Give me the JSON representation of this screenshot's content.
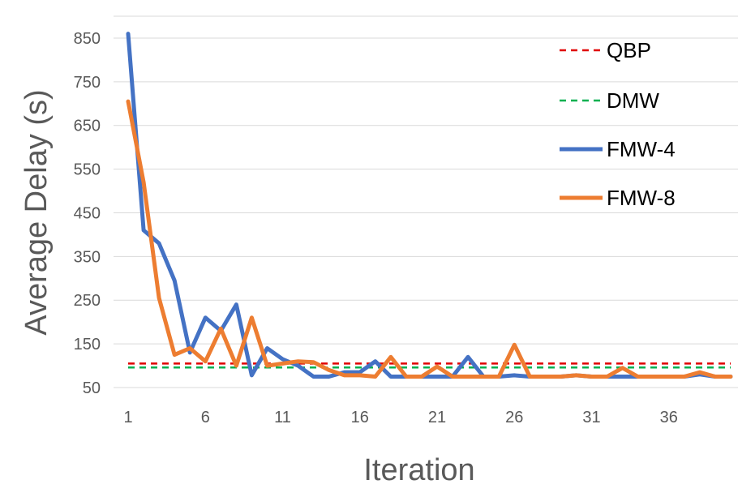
{
  "chart_data": {
    "type": "line",
    "title": "",
    "xlabel": "Iteration",
    "ylabel": "Average Delay (s)",
    "xlim": [
      1,
      40
    ],
    "ylim": [
      50,
      900
    ],
    "x_ticks": [
      1,
      6,
      11,
      16,
      21,
      26,
      31,
      36
    ],
    "x_tick_labels": [
      "1",
      "6",
      "11",
      "16",
      "21",
      "26",
      "31",
      "36"
    ],
    "y_ticks": [
      50,
      150,
      250,
      350,
      450,
      550,
      650,
      750,
      850
    ],
    "y_tick_labels": [
      "50",
      "150",
      "250",
      "350",
      "450",
      "550",
      "650",
      "750",
      "850"
    ],
    "grid": "horizontal",
    "legend_position": "top-right",
    "x": [
      1,
      2,
      3,
      4,
      5,
      6,
      7,
      8,
      9,
      10,
      11,
      12,
      13,
      14,
      15,
      16,
      17,
      18,
      19,
      20,
      21,
      22,
      23,
      24,
      25,
      26,
      27,
      28,
      29,
      30,
      31,
      32,
      33,
      34,
      35,
      36,
      37,
      38,
      39,
      40
    ],
    "series": [
      {
        "name": "QBP",
        "style": "dashed",
        "color": "#e00000",
        "values": [
          105,
          105,
          105,
          105,
          105,
          105,
          105,
          105,
          105,
          105,
          105,
          105,
          105,
          105,
          105,
          105,
          105,
          105,
          105,
          105,
          105,
          105,
          105,
          105,
          105,
          105,
          105,
          105,
          105,
          105,
          105,
          105,
          105,
          105,
          105,
          105,
          105,
          105,
          105,
          105
        ]
      },
      {
        "name": "DMW",
        "style": "dashed",
        "color": "#00b050",
        "values": [
          96,
          96,
          96,
          96,
          96,
          96,
          96,
          96,
          96,
          96,
          96,
          96,
          96,
          96,
          96,
          96,
          96,
          96,
          96,
          96,
          96,
          96,
          96,
          96,
          96,
          96,
          96,
          96,
          96,
          96,
          96,
          96,
          96,
          96,
          96,
          96,
          96,
          96,
          96,
          96
        ]
      },
      {
        "name": "FMW-4",
        "style": "solid",
        "color": "#4472c4",
        "values": [
          860,
          410,
          380,
          295,
          130,
          210,
          180,
          240,
          78,
          140,
          115,
          100,
          75,
          75,
          85,
          85,
          110,
          75,
          75,
          75,
          75,
          75,
          120,
          75,
          75,
          78,
          75,
          75,
          75,
          78,
          75,
          75,
          75,
          75,
          75,
          75,
          75,
          80,
          75,
          75
        ]
      },
      {
        "name": "FMW-8",
        "style": "solid",
        "color": "#ed7d31",
        "values": [
          705,
          520,
          255,
          125,
          140,
          110,
          185,
          100,
          210,
          100,
          105,
          110,
          108,
          90,
          78,
          78,
          75,
          120,
          75,
          75,
          98,
          75,
          75,
          75,
          75,
          148,
          75,
          75,
          75,
          78,
          75,
          75,
          95,
          75,
          75,
          75,
          75,
          85,
          75,
          75
        ]
      }
    ]
  }
}
